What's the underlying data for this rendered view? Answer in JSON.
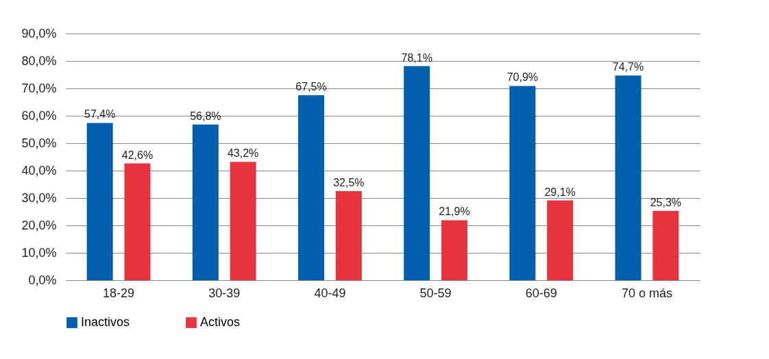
{
  "chart_data": {
    "type": "bar",
    "categories": [
      "18-29",
      "30-39",
      "40-49",
      "50-59",
      "60-69",
      "70 o más"
    ],
    "series": [
      {
        "name": "Inactivos",
        "color": "#0060ae",
        "values": [
          57.4,
          56.8,
          67.5,
          78.1,
          70.9,
          74.7
        ],
        "value_labels": [
          "57,4%",
          "56,8%",
          "67,5%",
          "78,1%",
          "70,9%",
          "74,7%"
        ]
      },
      {
        "name": "Activos",
        "color": "#e8343e",
        "values": [
          42.6,
          43.2,
          32.5,
          21.9,
          29.1,
          25.3
        ],
        "value_labels": [
          "42,6%",
          "43,2%",
          "32,5%",
          "21,9%",
          "29,1%",
          "25,3%"
        ]
      }
    ],
    "ylim": [
      0,
      90
    ],
    "yticks": [
      {
        "value": 0,
        "label": "0,0%"
      },
      {
        "value": 10,
        "label": "10,0%"
      },
      {
        "value": 20,
        "label": "20,0%"
      },
      {
        "value": 30,
        "label": "30,0%"
      },
      {
        "value": 40,
        "label": "40,0%"
      },
      {
        "value": 50,
        "label": "50,0%"
      },
      {
        "value": 60,
        "label": "60,0%"
      },
      {
        "value": 70,
        "label": "70,0%"
      },
      {
        "value": 80,
        "label": "80,0%"
      },
      {
        "value": 90,
        "label": "90,0%"
      }
    ],
    "grid": "y",
    "legend": "bottom"
  }
}
